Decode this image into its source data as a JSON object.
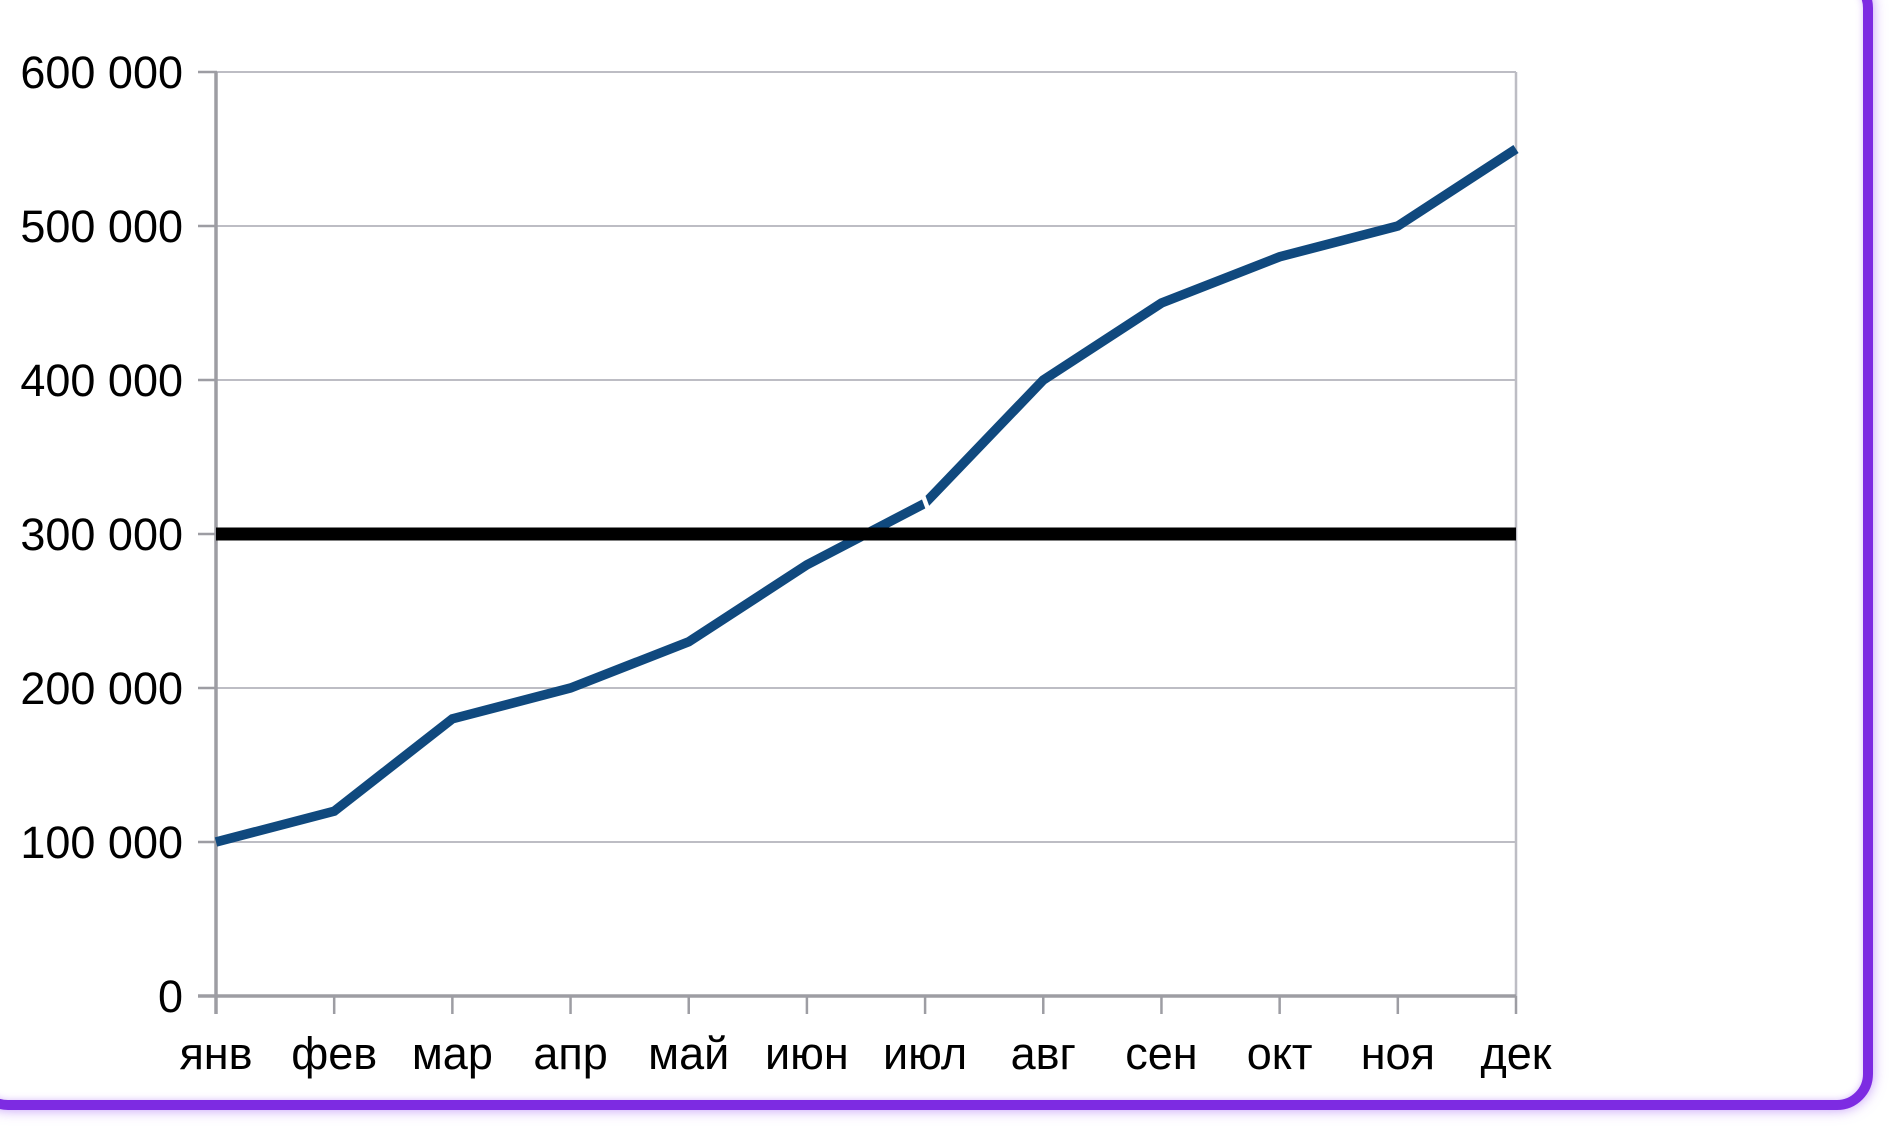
{
  "chart_data": {
    "type": "line",
    "title": "",
    "xlabel": "",
    "ylabel": "",
    "categories": [
      "янв",
      "фев",
      "мар",
      "апр",
      "май",
      "июн",
      "июл",
      "авг",
      "сен",
      "окт",
      "ноя",
      "дек"
    ],
    "series": [
      {
        "name": "monthly-cumulative-line",
        "color": "#10497e",
        "values": [
          100000,
          120000,
          180000,
          200000,
          230000,
          280000,
          320000,
          400000,
          450000,
          480000,
          500000,
          550000
        ]
      }
    ],
    "target_line": {
      "value": 300000,
      "color": "#000000"
    },
    "ylim": [
      0,
      600000
    ],
    "y_tick_step": 100000,
    "y_tick_labels": [
      "0",
      "100 000",
      "200 000",
      "300 000",
      "400 000",
      "500 000",
      "600 000"
    ],
    "grid": true,
    "legend_position": "none",
    "artifact_note": "small white line-join notch visible at the июл vertex of the blue line"
  },
  "colors": {
    "background": "#ffffff",
    "series_line": "#10497e",
    "target_line": "#000000",
    "gridline": "#bdbdc4",
    "axis": "#9d9da3",
    "text": "#000000",
    "frame": "#7d2be2",
    "frame_glow": "#a86ef5"
  }
}
